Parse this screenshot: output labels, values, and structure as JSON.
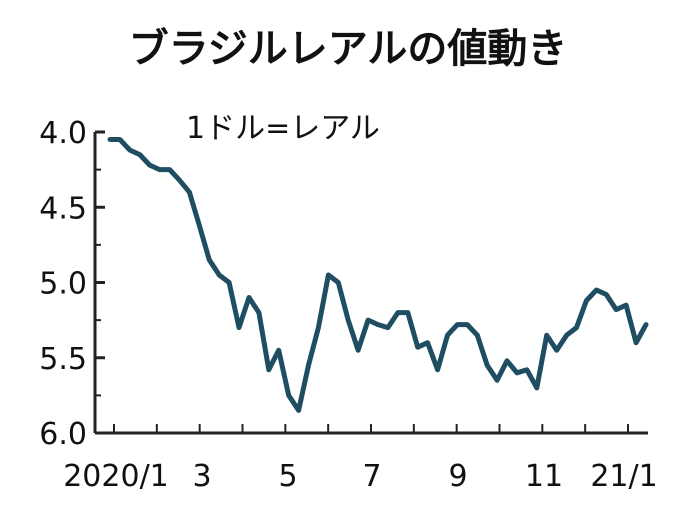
{
  "chart_data": {
    "type": "line",
    "title": "ブラジルレアルの値動き",
    "unit_label": "1ドル=レアル",
    "y_axis": {
      "inverted": true,
      "ylim": [
        4.0,
        6.0
      ],
      "ticks": [
        "4.0",
        "4.5",
        "5.0",
        "5.5",
        "6.0"
      ]
    },
    "x_axis": {
      "tick_labels": [
        "2020/1",
        "3",
        "5",
        "7",
        "9",
        "11",
        "21/1"
      ]
    },
    "grid": false,
    "line_color": "#1f4e62",
    "series": [
      {
        "x": [
          "2020-01-02",
          "2020-01-09",
          "2020-01-16",
          "2020-01-23",
          "2020-01-30",
          "2020-02-06",
          "2020-02-13",
          "2020-02-20",
          "2020-02-27",
          "2020-03-05",
          "2020-03-12",
          "2020-03-19",
          "2020-03-26",
          "2020-04-02",
          "2020-04-09",
          "2020-04-16",
          "2020-04-23",
          "2020-04-30",
          "2020-05-07",
          "2020-05-14",
          "2020-05-21",
          "2020-05-28",
          "2020-06-04",
          "2020-06-11",
          "2020-06-18",
          "2020-06-25",
          "2020-07-02",
          "2020-07-09",
          "2020-07-16",
          "2020-07-23",
          "2020-07-30",
          "2020-08-06",
          "2020-08-13",
          "2020-08-20",
          "2020-08-27",
          "2020-09-03",
          "2020-09-10",
          "2020-09-17",
          "2020-09-24",
          "2020-10-01",
          "2020-10-08",
          "2020-10-15",
          "2020-10-22",
          "2020-10-29",
          "2020-11-05",
          "2020-11-12",
          "2020-11-19",
          "2020-11-26",
          "2020-12-03",
          "2020-12-10",
          "2020-12-17",
          "2020-12-24",
          "2020-12-31",
          "2021-01-07",
          "2021-01-14"
        ],
        "values": [
          4.05,
          4.05,
          4.12,
          4.15,
          4.22,
          4.25,
          4.25,
          4.32,
          4.4,
          4.62,
          4.85,
          4.95,
          5.0,
          5.3,
          5.1,
          5.2,
          5.58,
          5.45,
          5.75,
          5.85,
          5.55,
          5.3,
          4.95,
          5.0,
          5.25,
          5.45,
          5.25,
          5.28,
          5.3,
          5.2,
          5.2,
          5.43,
          5.4,
          5.58,
          5.35,
          5.28,
          5.28,
          5.35,
          5.55,
          5.65,
          5.52,
          5.6,
          5.58,
          5.7,
          5.35,
          5.45,
          5.35,
          5.3,
          5.12,
          5.05,
          5.08,
          5.18,
          5.15,
          5.4,
          5.28
        ]
      }
    ]
  }
}
